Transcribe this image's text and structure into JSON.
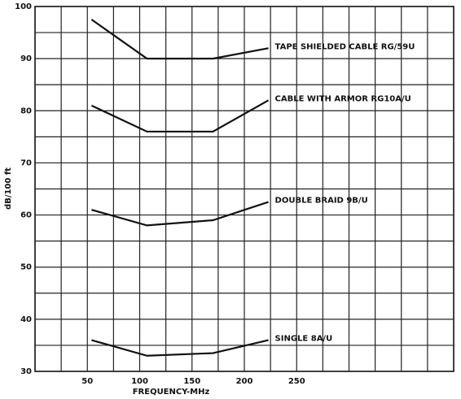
{
  "chart_data": {
    "type": "line",
    "x_label": "FREQUENCY-MHz",
    "y_label": "dB/100 ft",
    "xlim": [
      0,
      400
    ],
    "ylim": [
      30,
      100
    ],
    "xticks": [
      50,
      100,
      150,
      200,
      250
    ],
    "yticks": [
      30,
      40,
      50,
      60,
      70,
      80,
      90,
      100
    ],
    "x_gridlines": [
      25,
      50,
      75,
      100,
      125,
      150,
      175,
      200,
      225,
      250,
      275,
      300,
      325,
      350,
      375
    ],
    "y_gridlines": [
      35,
      40,
      45,
      50,
      55,
      60,
      65,
      70,
      75,
      80,
      85,
      90,
      95
    ],
    "grid": true,
    "x": [
      54,
      107,
      170,
      223
    ],
    "series": [
      {
        "name": "TAPE SHIELDED CABLE RG/59U",
        "color": "#111111",
        "values": [
          97.5,
          90,
          90,
          92
        ]
      },
      {
        "name": "CABLE WITH ARMOR RG10A/U",
        "color": "#111111",
        "values": [
          81,
          76,
          76,
          82
        ]
      },
      {
        "name": "DOUBLE BRAID 9B/U",
        "color": "#111111",
        "values": [
          61,
          58,
          59,
          62.5
        ]
      },
      {
        "name": "SINGLE 8A/U",
        "color": "#111111",
        "values": [
          36,
          33,
          33.5,
          36
        ]
      }
    ]
  }
}
